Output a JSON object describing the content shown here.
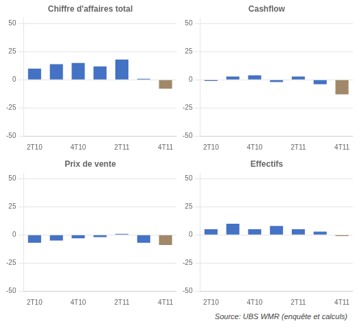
{
  "chart_data": [
    {
      "type": "bar",
      "title": "Chiffre d'affaires total",
      "categories": [
        "2T10",
        null,
        "4T10",
        null,
        "2T11",
        null,
        "4T11"
      ],
      "values": [
        10,
        14,
        15,
        12,
        18,
        1,
        -8
      ],
      "colors": [
        "#4472C4",
        "#4472C4",
        "#4472C4",
        "#4472C4",
        "#4472C4",
        "#4472C4",
        "#A08868"
      ],
      "ylim": [
        -50,
        55
      ],
      "yticks": [
        -50,
        -25,
        0,
        25,
        50
      ],
      "grid": true
    },
    {
      "type": "bar",
      "title": "Cashflow",
      "categories": [
        "2T10",
        null,
        "4T10",
        null,
        "2T11",
        null,
        "4T11"
      ],
      "values": [
        -1,
        3,
        4,
        -2,
        3,
        -4,
        -13
      ],
      "colors": [
        "#4472C4",
        "#4472C4",
        "#4472C4",
        "#4472C4",
        "#4472C4",
        "#4472C4",
        "#A08868"
      ],
      "ylim": [
        -50,
        55
      ],
      "yticks": [
        -50,
        -25,
        0,
        25,
        50
      ],
      "grid": true
    },
    {
      "type": "bar",
      "title": "Prix de vente",
      "categories": [
        "2T10",
        null,
        "4T10",
        null,
        "2T11",
        null,
        "4T11"
      ],
      "values": [
        -7,
        -5,
        -3,
        -2,
        1,
        -7,
        -9
      ],
      "colors": [
        "#4472C4",
        "#4472C4",
        "#4472C4",
        "#4472C4",
        "#4472C4",
        "#4472C4",
        "#A08868"
      ],
      "ylim": [
        -50,
        55
      ],
      "yticks": [
        -50,
        -25,
        0,
        25,
        50
      ],
      "grid": true
    },
    {
      "type": "bar",
      "title": "Effectifs",
      "categories": [
        "2T10",
        null,
        "4T10",
        null,
        "2T11",
        null,
        "4T11"
      ],
      "values": [
        5,
        10,
        5,
        8,
        5,
        3,
        -1
      ],
      "colors": [
        "#4472C4",
        "#4472C4",
        "#4472C4",
        "#4472C4",
        "#4472C4",
        "#4472C4",
        "#A08868"
      ],
      "ylim": [
        -50,
        55
      ],
      "yticks": [
        -50,
        -25,
        0,
        25,
        50
      ],
      "grid": true
    }
  ],
  "annotations": [
    "Source: UBS WMR (enquête et calculs)"
  ]
}
